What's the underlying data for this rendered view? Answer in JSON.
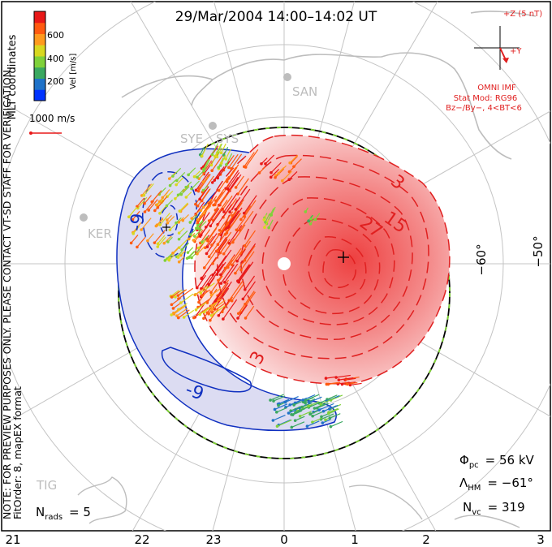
{
  "title": "29/Mar/2004 14:00–14:02 UT",
  "colorbar": {
    "unit_label": "Vel [m/s]",
    "ticks": [
      "600",
      "400",
      "200"
    ],
    "colors": [
      "#0033ff",
      "#1f72c8",
      "#3aa860",
      "#7fd13a",
      "#d8d820",
      "#ff9a1e",
      "#ff5a10",
      "#e81818"
    ]
  },
  "coord_label": "MLT coordinates",
  "scale_vector": "1000 m/s",
  "verification_note": "NOTE: FOR PREVIEW PURPOSES ONLY. PLEASE CONTACT VT-SD STAFF FOR VERIFICATION.",
  "fit_note": "FitOrder: 8, mapEX format",
  "imf": {
    "bz_label": "+Z (5 nT)",
    "by_label": "+Y",
    "source": "OMNI IMF",
    "model": "Stat Mod: RG96",
    "condition": "Bz−/By−, 4<BT<6"
  },
  "stations": [
    "SAN",
    "SYE",
    "SYS",
    "KER",
    "TIG"
  ],
  "lat_labels": [
    "−60°",
    "−50°"
  ],
  "contour_labels": [
    "-9",
    "-9",
    "3",
    "15",
    "27",
    "3"
  ],
  "mlt_ticks": [
    "21",
    "22",
    "23",
    "0",
    "1",
    "2",
    "3"
  ],
  "stats": {
    "phi_symbol": "Φ",
    "phi_sub": "pc",
    "phi_value": "= 56 kV",
    "lambda_symbol": "Λ",
    "lambda_sub": "HM",
    "lambda_value": "= −61°",
    "nvc_symbol": "N",
    "nvc_sub": "vc",
    "nvc_value": "= 319",
    "nrads_symbol": "N",
    "nrads_sub": "rads",
    "nrads_value": "= 5"
  },
  "colors": {
    "positive_contour": "#e02020",
    "negative_contour": "#1030c0",
    "positive_fill": "#f06868",
    "negative_fill": "#dcdcf2",
    "coastline": "#c8c8c8",
    "grid": "#c0c0c0"
  }
}
